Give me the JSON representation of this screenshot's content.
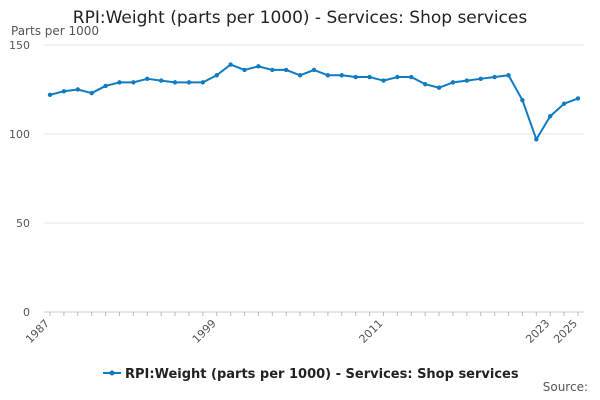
{
  "chart_data": {
    "type": "line",
    "title": "RPI:Weight (parts per 1000) - Services: Shop services",
    "ylabel": "Parts per 1000",
    "xlabel": "",
    "ylim": [
      0,
      150
    ],
    "yticks": [
      0,
      50,
      100,
      150
    ],
    "xlim": [
      1987,
      2025
    ],
    "xticks": [
      1987,
      1999,
      2011,
      2023,
      2025
    ],
    "grid": true,
    "legend": "bottom-center",
    "series": [
      {
        "name": "RPI:Weight (parts per 1000) - Services: Shop services",
        "color": "#0f7bc1",
        "x": [
          1987,
          1988,
          1989,
          1990,
          1991,
          1992,
          1993,
          1994,
          1995,
          1996,
          1997,
          1998,
          1999,
          2000,
          2001,
          2002,
          2003,
          2004,
          2005,
          2006,
          2007,
          2008,
          2009,
          2010,
          2011,
          2012,
          2013,
          2014,
          2015,
          2016,
          2017,
          2018,
          2019,
          2020,
          2021,
          2022,
          2023,
          2024,
          2025
        ],
        "values": [
          122,
          124,
          125,
          123,
          127,
          129,
          129,
          131,
          130,
          129,
          129,
          129,
          133,
          139,
          136,
          138,
          136,
          136,
          133,
          136,
          133,
          133,
          132,
          132,
          130,
          132,
          132,
          128,
          126,
          129,
          130,
          131,
          132,
          133,
          119,
          97,
          110,
          117,
          120
        ]
      }
    ]
  },
  "footer": {
    "source_label": "Source:"
  }
}
